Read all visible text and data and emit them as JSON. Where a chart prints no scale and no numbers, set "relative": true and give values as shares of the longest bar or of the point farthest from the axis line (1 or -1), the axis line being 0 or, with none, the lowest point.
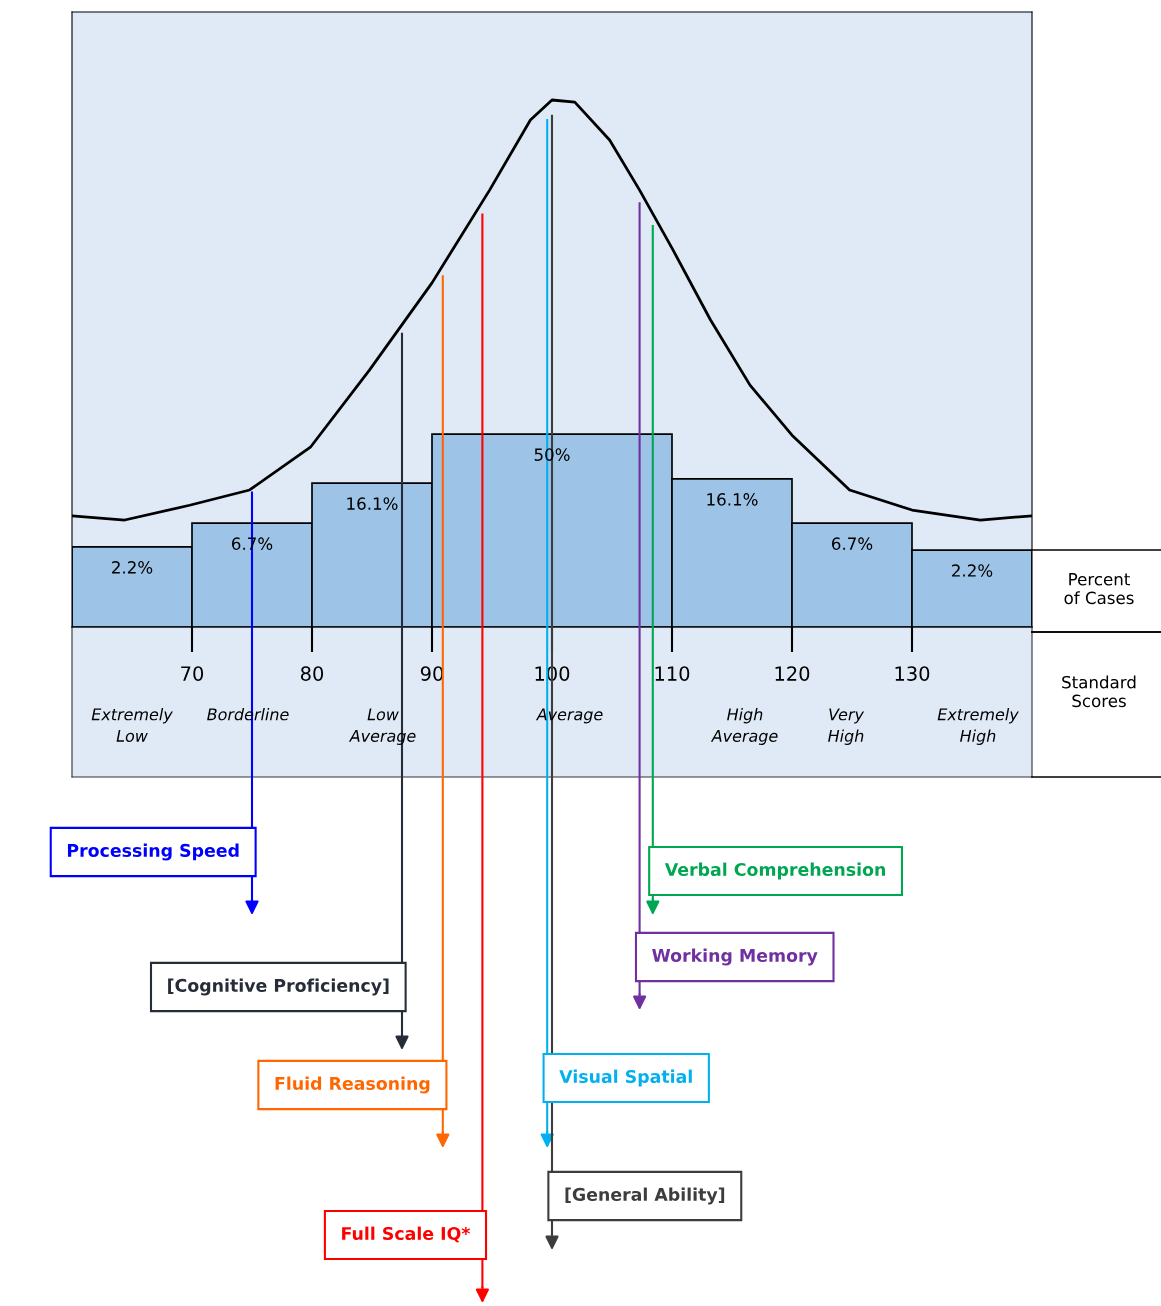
{
  "chart_data": {
    "type": "histogram",
    "relative": true,
    "bins": [
      60,
      70,
      80,
      90,
      110,
      120,
      130,
      140
    ],
    "values": [
      0.152,
      0.197,
      0.273,
      0.366,
      0.281,
      0.197,
      0.146
    ],
    "color": "#9dc3e6",
    "series": [
      {
        "type": "line",
        "color": "#000000",
        "x": [
          60,
          64.4,
          69.8,
          74.8,
          79.9,
          84.8,
          90,
          94.8,
          98.2,
          100,
          101.9,
          104.8,
          107.3,
          110,
          113.2,
          116.5,
          120,
          124.8,
          130,
          135.7,
          140
        ],
        "values": [
          0.211,
          0.203,
          0.231,
          0.26,
          0.342,
          0.488,
          0.653,
          0.829,
          0.962,
          1,
          0.996,
          0.924,
          0.829,
          0.719,
          0.583,
          0.459,
          0.364,
          0.26,
          0.222,
          0.203,
          0.211
        ]
      }
    ],
    "xlim": [
      60,
      140
    ],
    "xticks": [
      70,
      80,
      90,
      100,
      110,
      120,
      130
    ],
    "grid": false,
    "ref_lines": [
      {
        "axis": "x",
        "value": 75,
        "label": "Processing Speed",
        "color": "#0000ff"
      },
      {
        "axis": "x",
        "value": 108.4,
        "label": "Verbal Comprehension",
        "color": "#00a651"
      },
      {
        "axis": "x",
        "value": 107.3,
        "label": "Working Memory",
        "color": "#7030a0"
      },
      {
        "axis": "x",
        "value": 87.5,
        "label": "[Cognitive Proficiency]",
        "color": "#262c38"
      },
      {
        "axis": "x",
        "value": 99.6,
        "label": "Visual Spatial",
        "color": "#00b0f0"
      },
      {
        "axis": "x",
        "value": 90.9,
        "label": "Fluid Reasoning",
        "color": "#ff6600"
      },
      {
        "axis": "x",
        "value": 100,
        "label": "[General Ability]",
        "color": "#3d3d3d"
      },
      {
        "axis": "x",
        "value": 94.2,
        "label": "Full Scale IQ*",
        "color": "#ff0000"
      }
    ],
    "annotations": [
      {
        "text": "2.2%",
        "x": 65,
        "y": 0.152
      },
      {
        "text": "6.7%",
        "x": 75,
        "y": 0.197
      },
      {
        "text": "16.1%",
        "x": 85,
        "y": 0.273
      },
      {
        "text": "50%",
        "x": 100,
        "y": 0.366
      },
      {
        "text": "16.1%",
        "x": 115,
        "y": 0.281
      },
      {
        "text": "6.7%",
        "x": 125,
        "y": 0.197
      },
      {
        "text": "2.2%",
        "x": 135,
        "y": 0.146
      },
      "Extremely\nLow",
      "Borderline",
      "Low\nAverage",
      "Average",
      "High\nAverage",
      "Very\nHigh",
      "Extremely\nHigh",
      "Percent\nof Cases",
      "Standard\nScores"
    ]
  }
}
